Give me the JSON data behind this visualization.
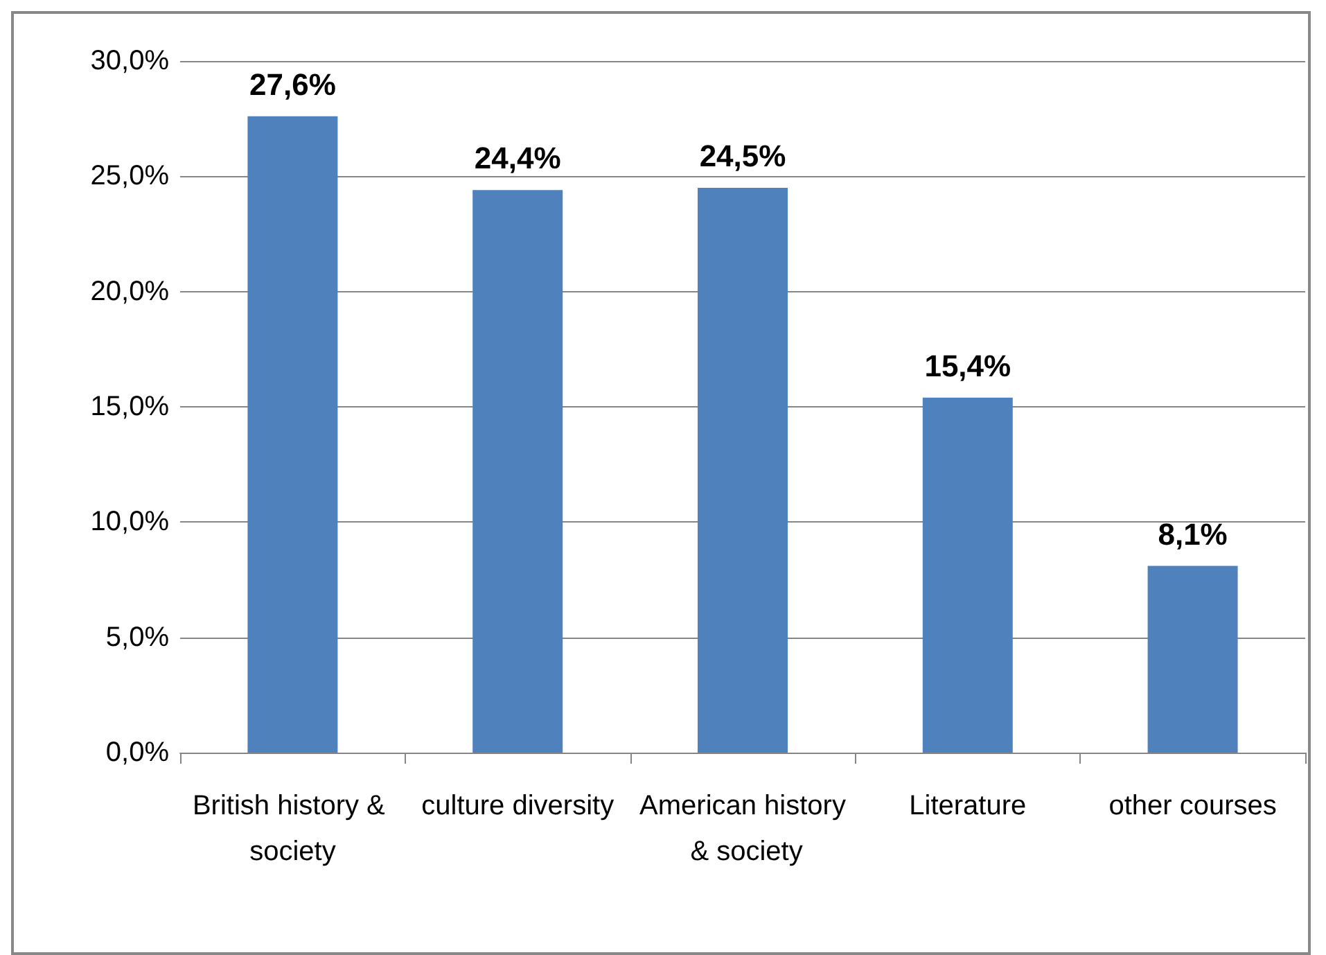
{
  "chart_data": {
    "type": "bar",
    "categories": [
      "British history & society",
      "culture diversity",
      "American history & society",
      "Literature",
      "other courses"
    ],
    "values": [
      27.6,
      24.4,
      24.5,
      15.4,
      8.1
    ],
    "value_labels": [
      "27,6%",
      "24,4%",
      "24,5%",
      "15,4%",
      "8,1%"
    ],
    "color": "#4f81bd",
    "ylim": [
      0,
      30
    ],
    "yticks": [
      {
        "value": 0,
        "label": "0,0%"
      },
      {
        "value": 5,
        "label": "5,0%"
      },
      {
        "value": 10,
        "label": "10,0%"
      },
      {
        "value": 15,
        "label": "15,0%"
      },
      {
        "value": 20,
        "label": "20,0%"
      },
      {
        "value": 25,
        "label": "25,0%"
      },
      {
        "value": 30,
        "label": "30,0%"
      }
    ],
    "grid": "y"
  }
}
